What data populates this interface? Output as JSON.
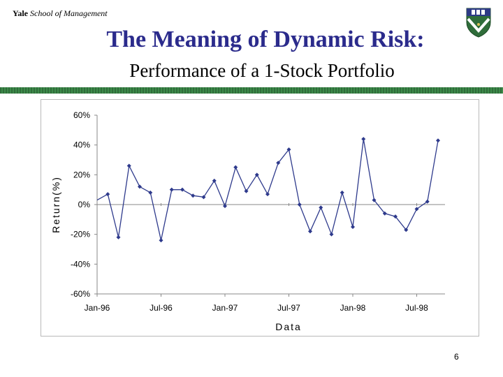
{
  "header": {
    "school_bold": "Yale",
    "school_italic": "School of Management",
    "crest_icon": "yale-shield-crest-icon"
  },
  "title": "The Meaning of Dynamic Risk:",
  "subtitle": "Performance of a 1-Stock Portfolio",
  "page_number": "6",
  "colors": {
    "title": "#2b2b8c",
    "series": "#2e3a8c",
    "rule": "#2f6d3a"
  },
  "chart_data": {
    "type": "line",
    "xlabel": "Data",
    "ylabel": "Return(%)",
    "ylim": [
      -60,
      60
    ],
    "yticks": [
      60,
      40,
      20,
      0,
      -20,
      -40,
      -60
    ],
    "ytick_labels": [
      "60%",
      "40%",
      "20%",
      "0%",
      "-20%",
      "-40%",
      "-60%"
    ],
    "xtick_labels": [
      "Jan-96",
      "Jul-96",
      "Jan-97",
      "Jul-97",
      "Jan-98",
      "Jul-98"
    ],
    "grid": false,
    "series": [
      {
        "values": [
          3,
          7,
          -22,
          26,
          12,
          8,
          -24,
          10,
          10,
          6,
          5,
          16,
          -1,
          25,
          9,
          20,
          7,
          28,
          37,
          0,
          -18,
          -2,
          -20,
          8,
          -15,
          44,
          3,
          -6,
          -8,
          -17,
          -3,
          2,
          43
        ]
      }
    ]
  }
}
